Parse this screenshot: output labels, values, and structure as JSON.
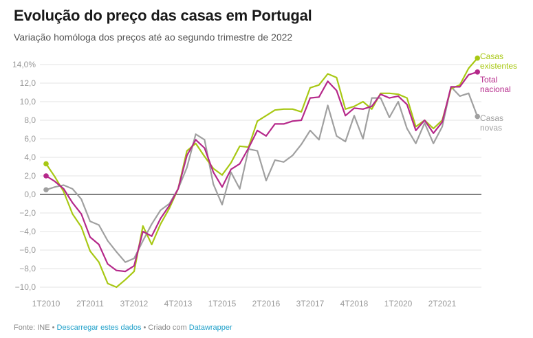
{
  "header": {
    "title": "Evolução do preço das casas em Portugal",
    "subtitle": "Variação homóloga dos preços até ao segundo trimestre de 2022"
  },
  "footer": {
    "source": "Fonte: INE",
    "sep1": " • ",
    "download_link": "Descarregar estes dados",
    "sep2": " • Criado com ",
    "tool_link": "Datawrapper"
  },
  "chart_data": {
    "type": "line",
    "title": "Evolução do preço das casas em Portugal",
    "subtitle": "Variação homóloga dos preços até ao segundo trimestre de 2022",
    "xlabel": "",
    "ylabel": "",
    "ylim": [
      -10,
      14
    ],
    "yticks": [
      14,
      12,
      10,
      8,
      6,
      4,
      2,
      0,
      -2,
      -4,
      -6,
      -8,
      -10
    ],
    "ytick_labels": [
      "14,0%",
      "12,0",
      "10,0",
      "8,0",
      "6,0",
      "4,0",
      "2,0",
      "0,0",
      "−2,0",
      "−4,0",
      "−6,0",
      "−8,0",
      "−10,0"
    ],
    "xtick_labels": [
      "1T2010",
      "2T2011",
      "3T2012",
      "4T2013",
      "1T2015",
      "2T2016",
      "3T2017",
      "4T2018",
      "1T2020",
      "2T2021"
    ],
    "xtick_step_quarters": 5,
    "n_quarters": 50,
    "first_quarter": "1T2010",
    "last_quarter": "2T2022",
    "grid": true,
    "zero_line": true,
    "legend": "right-end-labels",
    "series": [
      {
        "name": "Casas existentes",
        "label_lines": [
          "Casas",
          "existentes"
        ],
        "color": "#a8c814",
        "values": [
          3.3,
          1.9,
          0.3,
          -2.1,
          -3.5,
          -6.1,
          -7.3,
          -9.6,
          -10.0,
          -9.2,
          -8.3,
          -3.4,
          -5.4,
          -3.2,
          -1.5,
          0.6,
          4.7,
          5.5,
          4.1,
          2.8,
          2.1,
          3.4,
          5.2,
          5.1,
          7.9,
          8.5,
          9.1,
          9.2,
          9.2,
          8.9,
          11.5,
          11.8,
          13.0,
          12.6,
          9.2,
          9.5,
          10.0,
          9.2,
          10.9,
          10.9,
          10.8,
          10.4,
          7.3,
          8.0,
          7.1,
          8.0,
          11.4,
          11.8,
          13.6,
          14.7
        ]
      },
      {
        "name": "Total nacional",
        "label_lines": [
          "Total",
          "nacional"
        ],
        "color": "#b5288a",
        "values": [
          2.0,
          1.4,
          0.6,
          -0.9,
          -2.1,
          -4.6,
          -5.4,
          -7.5,
          -8.2,
          -8.3,
          -7.7,
          -4.0,
          -4.5,
          -2.6,
          -1.2,
          0.6,
          4.2,
          5.9,
          5.0,
          2.4,
          0.8,
          2.7,
          3.3,
          5.0,
          6.9,
          6.3,
          7.6,
          7.6,
          7.9,
          8.0,
          10.4,
          10.5,
          12.2,
          11.2,
          8.5,
          9.3,
          9.2,
          9.5,
          10.8,
          10.4,
          10.6,
          9.7,
          6.9,
          8.0,
          6.6,
          7.8,
          11.6,
          11.6,
          12.9,
          13.2
        ]
      },
      {
        "name": "Casas novas",
        "label_lines": [
          "Casas",
          "novas"
        ],
        "color": "#a0a0a0",
        "values": [
          0.5,
          0.8,
          1.0,
          0.6,
          -0.5,
          -2.9,
          -3.3,
          -5.0,
          -6.2,
          -7.3,
          -6.9,
          -5.0,
          -3.2,
          -1.7,
          -1.0,
          0.6,
          2.9,
          6.5,
          5.9,
          1.1,
          -1.1,
          2.4,
          0.6,
          4.9,
          4.7,
          1.5,
          3.7,
          3.5,
          4.2,
          5.4,
          6.9,
          5.9,
          9.6,
          6.3,
          5.7,
          8.5,
          6.0,
          10.4,
          10.4,
          8.3,
          10.0,
          7.1,
          5.5,
          7.7,
          5.5,
          7.3,
          11.6,
          10.6,
          10.9,
          8.4
        ]
      }
    ]
  }
}
